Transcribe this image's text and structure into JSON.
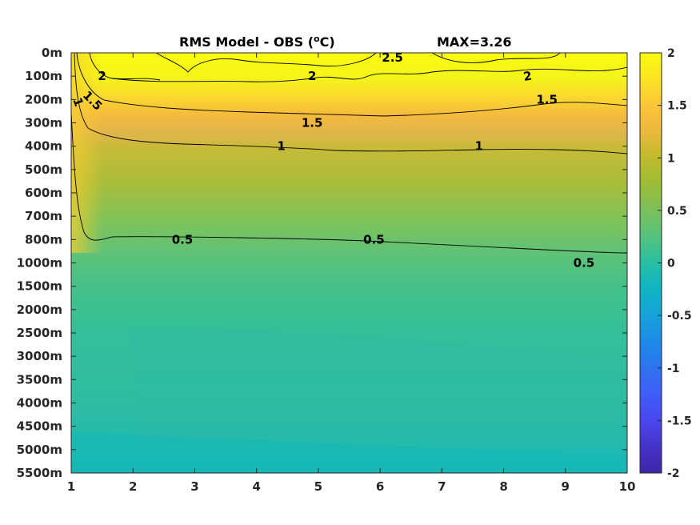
{
  "chart_data": {
    "type": "heatmap",
    "title": "RMS Model - OBS (",
    "title_unit_sup": "o",
    "title_unit_end": "C)",
    "max_label": "MAX=3.26",
    "xlabel": "",
    "ylabel": "",
    "x_ticks": [
      "1",
      "2",
      "3",
      "4",
      "5",
      "6",
      "7",
      "8",
      "9",
      "10"
    ],
    "xlim": [
      1,
      10
    ],
    "y_ticks": [
      "0m",
      "100m",
      "200m",
      "300m",
      "400m",
      "500m",
      "600m",
      "700m",
      "800m",
      "1000m",
      "1500m",
      "2000m",
      "2500m",
      "3000m",
      "3500m",
      "4000m",
      "4500m",
      "5000m",
      "5500m"
    ],
    "colorbar": {
      "range": [
        -2,
        2
      ],
      "ticks": [
        "2",
        "1.5",
        "1",
        "0.5",
        "0",
        "-0.5",
        "-1",
        "-1.5",
        "-2"
      ],
      "colormap": "parula"
    },
    "depth_profile_rms": [
      2.6,
      2.2,
      1.6,
      1.25,
      1.0,
      0.88,
      0.78,
      0.68,
      0.52,
      0.42,
      0.38,
      0.35,
      0.32,
      0.3,
      0.3,
      0.28,
      0.26,
      0.2,
      0.15
    ],
    "contours": [
      {
        "level": "2.5",
        "label_x": 6.2,
        "label_depth": "0m"
      },
      {
        "level": "2",
        "label_x": 1.5,
        "label_depth": "100m"
      },
      {
        "level": "2",
        "label_x": 4.9,
        "label_depth": "100m"
      },
      {
        "level": "2",
        "label_x": 8.4,
        "label_depth": "100m"
      },
      {
        "level": "1.5",
        "label_x": 1.3,
        "label_depth": "200m"
      },
      {
        "level": "1.5",
        "label_x": 4.9,
        "label_depth": "300m"
      },
      {
        "level": "1.5",
        "label_x": 8.7,
        "label_depth": "200m"
      },
      {
        "level": "1",
        "label_x": 1.05,
        "label_depth": "200m"
      },
      {
        "level": "1",
        "label_x": 4.4,
        "label_depth": "400m"
      },
      {
        "level": "1",
        "label_x": 7.6,
        "label_depth": "400m"
      },
      {
        "level": "0.5",
        "label_x": 2.8,
        "label_depth": "800m"
      },
      {
        "level": "0.5",
        "label_x": 5.9,
        "label_depth": "800m"
      },
      {
        "level": "0.5",
        "label_x": 9.3,
        "label_depth": "1000m"
      }
    ]
  }
}
